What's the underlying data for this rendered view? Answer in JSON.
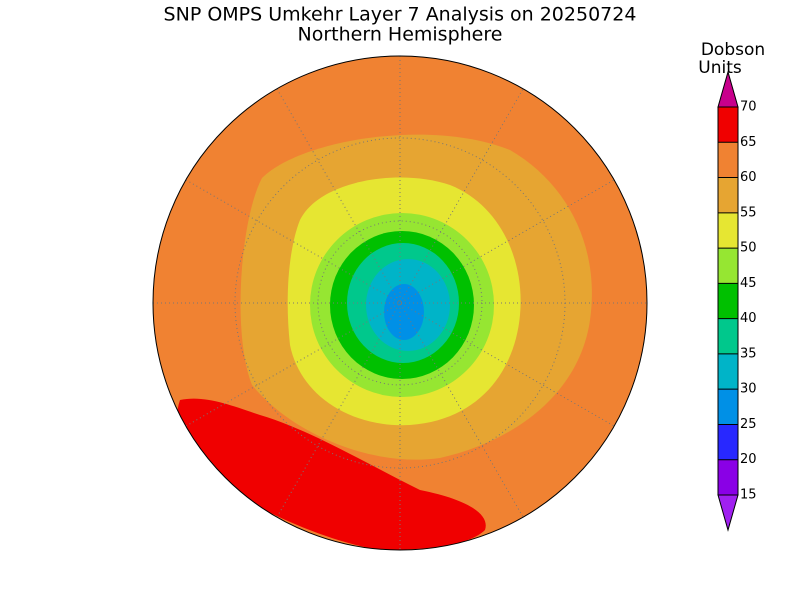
{
  "map": {
    "title": "SNP OMPS Umkehr Layer 7 Analysis on 20250724",
    "subtitle": "Northern Hemisphere",
    "colorbar": {
      "label": [
        "Dobson",
        "Units"
      ],
      "ticks": [
        15,
        20,
        25,
        30,
        35,
        40,
        45,
        50,
        55,
        60,
        65,
        70
      ],
      "colors": [
        "#8a00e6",
        "#2828ff",
        "#0090e6",
        "#00b4c8",
        "#00c88c",
        "#00c000",
        "#96e632",
        "#e6e632",
        "#e6a532",
        "#f08232",
        "#f00000"
      ],
      "under_color": "#a020f0",
      "over_color": "#c8008c"
    }
  }
}
